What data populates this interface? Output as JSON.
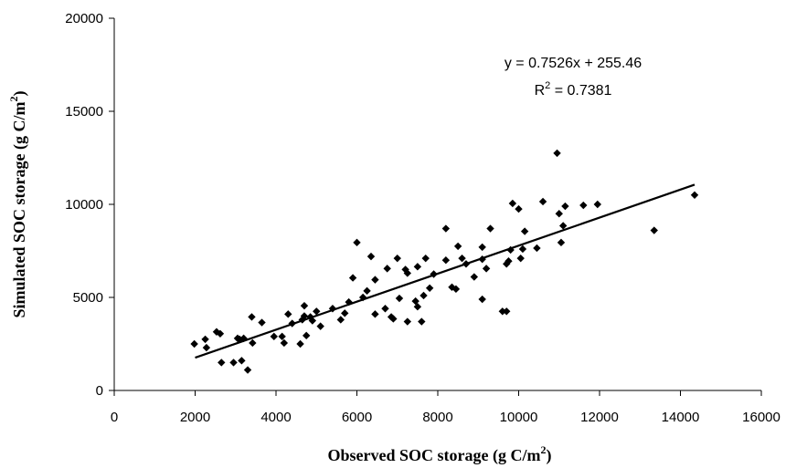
{
  "chart_data": {
    "type": "scatter",
    "title": "",
    "xlabel": "Observed SOC storage (g C/m",
    "xlabel_sup": "2",
    "xlabel_end": ")",
    "ylabel": "Simulated SOC storage (g C/m",
    "ylabel_sup": "2",
    "ylabel_end": ")",
    "xlim": [
      0,
      16000
    ],
    "ylim": [
      0,
      20000
    ],
    "xticks": [
      "0",
      "2000",
      "4000",
      "6000",
      "8000",
      "10000",
      "12000",
      "14000",
      "16000"
    ],
    "yticks": [
      "0",
      "5000",
      "10000",
      "15000",
      "20000"
    ],
    "grid": false,
    "marker_color": "#000000",
    "trendline": {
      "slope": 0.7526,
      "intercept": 255.46,
      "x_range": [
        2000,
        14350
      ],
      "equation": "y = 0.7526x + 255.46",
      "r2_prefix": "R",
      "r2_sup": "2",
      "r2_suffix": " = 0.7381"
    },
    "series": [
      {
        "x": [
          1980,
          2250,
          2280,
          2530,
          2620,
          2650,
          2950,
          3050,
          3100,
          3150,
          3200,
          3300,
          3400,
          3420,
          3650,
          3950,
          4150,
          4200,
          4300,
          4400,
          4600,
          4650,
          4700,
          4700,
          4750,
          4850,
          4900,
          5000,
          5100,
          5400,
          5600,
          5700,
          5800,
          5900,
          6000,
          6150,
          6250,
          6350,
          6450,
          6450,
          6700,
          6750,
          6850,
          6900,
          7000,
          7050,
          7200,
          7250,
          7250,
          7450,
          7500,
          7500,
          7600,
          7650,
          7700,
          7800,
          7900,
          8200,
          8200,
          8350,
          8450,
          8500,
          8600,
          8700,
          8900,
          9100,
          9100,
          9100,
          9200,
          9300,
          9600,
          9700,
          9700,
          9750,
          9800,
          9850,
          10000,
          10050,
          10100,
          10150,
          10450,
          10600,
          10950,
          11000,
          11050,
          11100,
          11150,
          11600,
          11950,
          13350,
          14350
        ],
        "y": [
          2500,
          2750,
          2300,
          3150,
          3050,
          1500,
          1500,
          2800,
          2750,
          1600,
          2800,
          1100,
          3950,
          2550,
          3650,
          2900,
          2900,
          2550,
          4100,
          3600,
          2500,
          3800,
          4550,
          4000,
          2950,
          3950,
          3750,
          4250,
          3450,
          4400,
          3800,
          4150,
          4750,
          6050,
          7950,
          5000,
          5350,
          7200,
          5950,
          4100,
          4400,
          6550,
          3950,
          3850,
          7100,
          4950,
          6500,
          6300,
          3700,
          4800,
          4500,
          6650,
          3700,
          5100,
          7100,
          5500,
          6250,
          8700,
          7000,
          5550,
          5450,
          7750,
          7100,
          6800,
          6100,
          7700,
          7050,
          4900,
          6550,
          8700,
          4250,
          4250,
          6800,
          6950,
          7550,
          10050,
          9750,
          7100,
          7600,
          8550,
          7650,
          10150,
          12750,
          9500,
          7950,
          8850,
          9900,
          9950,
          10000,
          8600,
          10500
        ]
      }
    ]
  }
}
